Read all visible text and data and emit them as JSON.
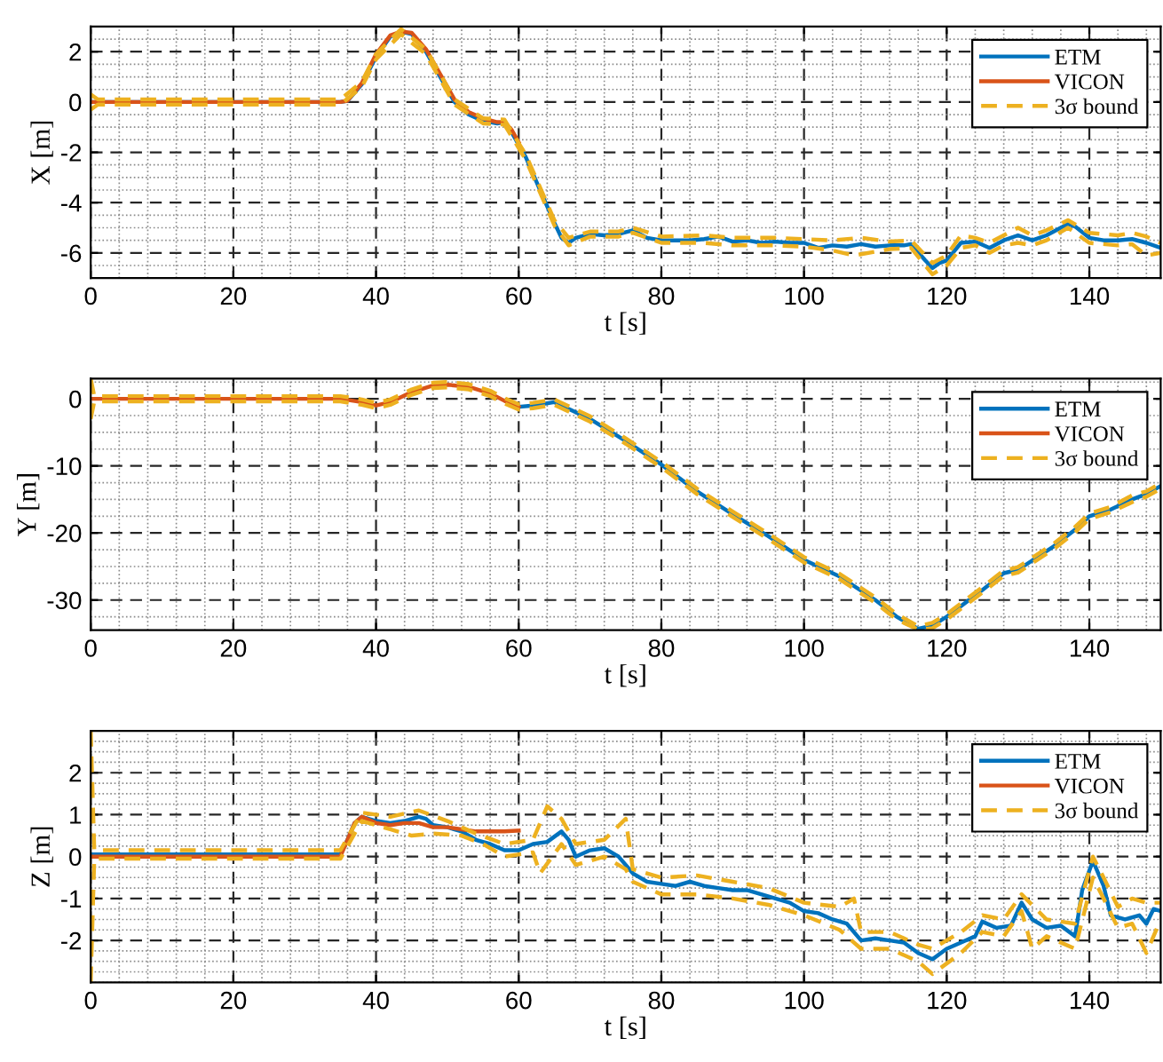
{
  "chart_data": [
    {
      "type": "line",
      "xlabel": "t [s]",
      "ylabel": "X [m]",
      "xlim": [
        0,
        150
      ],
      "ylim": [
        -7,
        3
      ],
      "xticks": [
        0,
        20,
        40,
        60,
        80,
        100,
        120,
        140
      ],
      "yticks": [
        -6,
        -4,
        -2,
        0,
        2
      ],
      "grid": true,
      "legend": "top right",
      "series": [
        {
          "name": "ETM",
          "color": "#0072bd",
          "x": [
            0,
            35,
            36,
            38,
            40,
            42,
            43.5,
            45,
            47,
            49,
            51,
            53,
            55,
            57,
            58,
            59,
            61,
            63,
            65,
            66,
            67,
            68,
            70,
            72,
            74,
            76,
            78,
            80,
            82,
            84,
            86,
            88,
            90,
            92,
            94,
            96,
            98,
            100,
            102,
            104,
            106,
            108,
            110,
            112,
            114,
            115,
            117,
            118,
            119,
            120,
            122,
            124,
            126,
            128,
            130,
            132,
            134,
            136,
            137,
            138,
            140,
            142,
            144,
            146,
            148,
            150
          ],
          "values": [
            0,
            0,
            0.05,
            0.7,
            1.8,
            2.6,
            2.8,
            2.7,
            2.0,
            1.0,
            0.0,
            -0.5,
            -0.75,
            -0.85,
            -0.8,
            -1.2,
            -2.2,
            -3.5,
            -4.8,
            -5.4,
            -5.6,
            -5.4,
            -5.25,
            -5.3,
            -5.25,
            -5.1,
            -5.4,
            -5.5,
            -5.5,
            -5.5,
            -5.45,
            -5.35,
            -5.55,
            -5.5,
            -5.6,
            -5.55,
            -5.6,
            -5.6,
            -5.8,
            -5.7,
            -5.75,
            -5.65,
            -5.75,
            -5.7,
            -5.7,
            -5.65,
            -6.3,
            -6.6,
            -6.4,
            -6.3,
            -5.6,
            -5.55,
            -5.8,
            -5.5,
            -5.3,
            -5.5,
            -5.3,
            -5.0,
            -4.85,
            -4.95,
            -5.4,
            -5.5,
            -5.5,
            -5.45,
            -5.6,
            -5.8
          ]
        },
        {
          "name": "VICON",
          "color": "#d95319",
          "x": [
            0,
            35,
            36,
            38,
            40,
            42,
            43.5,
            45,
            47,
            49,
            51,
            53,
            55,
            57,
            58,
            59,
            60
          ],
          "values": [
            0,
            0,
            0.05,
            0.75,
            1.9,
            2.65,
            2.8,
            2.75,
            2.1,
            1.1,
            0.1,
            -0.4,
            -0.65,
            -0.8,
            -0.8,
            -1.1,
            -1.6
          ]
        },
        {
          "name": "3σ bound",
          "color": "#edb120",
          "line_style": "dashed",
          "x": [
            0,
            1,
            35,
            38,
            40,
            43.5,
            47,
            51,
            55,
            58,
            61,
            65,
            67,
            70,
            74,
            76,
            80,
            86,
            90,
            96,
            100,
            104,
            108,
            112,
            115,
            118,
            120,
            122,
            124,
            126,
            128,
            130,
            132,
            134,
            137,
            140,
            144,
            146,
            148,
            150
          ],
          "values": [
            0.3,
            0.1,
            0.1,
            0.8,
            1.9,
            2.9,
            2.1,
            0.1,
            -0.65,
            -0.7,
            -2.1,
            -4.7,
            -5.4,
            -5.15,
            -5.15,
            -5.0,
            -5.35,
            -5.3,
            -5.4,
            -5.4,
            -5.45,
            -5.5,
            -5.4,
            -5.55,
            -5.5,
            -6.4,
            -6.1,
            -5.3,
            -5.4,
            -5.6,
            -5.3,
            -5.0,
            -5.3,
            -5.1,
            -4.7,
            -5.2,
            -5.3,
            -5.2,
            -5.35,
            -5.6
          ]
        },
        {
          "color": "#edb120",
          "line_style": "dashed",
          "x": [
            0,
            1,
            35,
            38,
            40,
            43.5,
            47,
            51,
            55,
            58,
            61,
            65,
            67,
            70,
            74,
            76,
            80,
            86,
            90,
            96,
            100,
            104,
            107,
            112,
            115,
            118,
            120,
            122,
            124,
            126,
            128,
            130,
            132,
            134,
            137,
            140,
            144,
            146,
            148,
            150
          ],
          "values": [
            -0.3,
            -0.1,
            -0.1,
            0.6,
            1.7,
            2.7,
            1.9,
            -0.1,
            -0.85,
            -0.9,
            -2.3,
            -4.9,
            -5.7,
            -5.35,
            -5.35,
            -5.2,
            -5.6,
            -5.6,
            -5.7,
            -5.7,
            -5.75,
            -5.9,
            -6.1,
            -5.85,
            -5.8,
            -6.85,
            -6.5,
            -5.8,
            -5.7,
            -6.0,
            -5.7,
            -5.6,
            -5.7,
            -5.5,
            -5.0,
            -5.6,
            -5.7,
            -5.65,
            -6.1,
            -6.0
          ]
        }
      ]
    },
    {
      "type": "line",
      "xlabel": "t [s]",
      "ylabel": "Y [m]",
      "xlim": [
        0,
        150
      ],
      "ylim": [
        -34.5,
        3
      ],
      "xticks": [
        0,
        20,
        40,
        60,
        80,
        100,
        120,
        140
      ],
      "yticks": [
        -30,
        -20,
        -10,
        0
      ],
      "grid": true,
      "legend": "top right",
      "series": [
        {
          "name": "ETM",
          "color": "#0072bd",
          "x": [
            60,
            62,
            65,
            68,
            70,
            75,
            80,
            85,
            90,
            95,
            100,
            105,
            110,
            113,
            116,
            118,
            120,
            125,
            128,
            130,
            135,
            138,
            140,
            143,
            146,
            148,
            150
          ],
          "values": [
            -1.2,
            -1,
            -0.5,
            -2,
            -3,
            -6.3,
            -9.8,
            -13.8,
            -17.2,
            -20.5,
            -24,
            -26.5,
            -30,
            -32.5,
            -34.3,
            -33.8,
            -32.5,
            -28.5,
            -26,
            -25.5,
            -22,
            -19.5,
            -17.5,
            -16.5,
            -15,
            -14.2,
            -13
          ]
        },
        {
          "name": "VICON",
          "color": "#d95319",
          "x": [
            0,
            35,
            38,
            40,
            42,
            45,
            48,
            50,
            53,
            56,
            58,
            60
          ],
          "values": [
            0,
            0,
            -0.5,
            -1,
            -0.5,
            1,
            2,
            2.1,
            1.8,
            0.8,
            -0.3,
            -1.2
          ]
        },
        {
          "name": "3σ bound",
          "color": "#edb120",
          "line_style": "dashed",
          "x": [
            0,
            0.5,
            35,
            38,
            40,
            42,
            45,
            48,
            50,
            53,
            56,
            58,
            60,
            62,
            65,
            68,
            70,
            75,
            80,
            85,
            90,
            95,
            100,
            105,
            110,
            113,
            116,
            118,
            120,
            125,
            128,
            130,
            135,
            138,
            140,
            143,
            146,
            148,
            150
          ],
          "values": [
            3,
            0.4,
            0.4,
            -0.1,
            -0.6,
            -0.1,
            1.4,
            2.4,
            2.5,
            2.2,
            1.2,
            0.1,
            -0.8,
            -0.6,
            -0.1,
            -1.6,
            -2.6,
            -5.9,
            -9.4,
            -13.4,
            -16.8,
            -20.1,
            -23.6,
            -26.1,
            -29.6,
            -32.1,
            -33.9,
            -33.4,
            -32.1,
            -28.1,
            -25.6,
            -25.1,
            -21.6,
            -19.1,
            -17.1,
            -16.1,
            -14.4,
            -13.8,
            -12.6
          ]
        },
        {
          "color": "#edb120",
          "line_style": "dashed",
          "x": [
            0,
            0.5,
            35,
            38,
            40,
            42,
            45,
            48,
            50,
            53,
            56,
            58,
            60,
            62,
            65,
            68,
            70,
            75,
            80,
            85,
            90,
            95,
            100,
            105,
            110,
            113,
            116,
            118,
            120,
            125,
            128,
            130,
            135,
            138,
            140,
            143,
            146,
            148,
            150
          ],
          "values": [
            -3,
            -0.4,
            -0.4,
            -0.9,
            -1.4,
            -0.9,
            0.6,
            1.6,
            1.7,
            1.4,
            0.4,
            -0.7,
            -1.6,
            -1.4,
            -0.9,
            -2.4,
            -3.4,
            -6.7,
            -10.2,
            -14.2,
            -17.6,
            -20.9,
            -24.4,
            -26.9,
            -30.4,
            -32.9,
            -34.4,
            -34.2,
            -32.9,
            -28.9,
            -26.4,
            -25.9,
            -22.4,
            -19.9,
            -17.9,
            -16.9,
            -15.4,
            -14.6,
            -13.4
          ]
        }
      ]
    },
    {
      "type": "line",
      "xlabel": "t [s]",
      "ylabel": "Z [m]",
      "xlim": [
        0,
        150
      ],
      "ylim": [
        -3,
        3
      ],
      "xticks": [
        0,
        20,
        40,
        60,
        80,
        100,
        120,
        140
      ],
      "yticks": [
        -2,
        -1,
        0,
        1,
        2
      ],
      "grid": true,
      "legend": "top right",
      "series": [
        {
          "name": "ETM",
          "color": "#0072bd",
          "x": [
            0,
            35,
            36,
            37,
            38,
            40,
            42,
            44,
            46,
            47,
            48,
            50,
            52,
            54,
            56,
            58,
            60,
            62,
            64,
            66,
            67,
            68,
            70,
            72,
            74,
            76,
            78,
            80,
            82,
            84,
            86,
            88,
            90,
            92,
            94,
            96,
            98,
            100,
            102,
            104,
            106,
            108,
            110,
            112,
            114,
            116,
            118,
            120,
            122,
            124,
            125,
            127,
            129,
            130.5,
            132,
            134,
            136,
            138,
            139,
            140.5,
            142,
            143,
            145,
            147,
            148,
            149,
            150
          ],
          "values": [
            0.05,
            0.05,
            0.4,
            0.8,
            0.95,
            0.85,
            0.8,
            0.85,
            0.95,
            0.9,
            0.75,
            0.7,
            0.6,
            0.4,
            0.3,
            0.15,
            0.15,
            0.3,
            0.35,
            0.6,
            0.4,
            0.0,
            0.15,
            0.2,
            0.0,
            -0.4,
            -0.6,
            -0.65,
            -0.7,
            -0.6,
            -0.7,
            -0.75,
            -0.8,
            -0.8,
            -0.9,
            -1.0,
            -1.1,
            -1.3,
            -1.35,
            -1.5,
            -1.6,
            -2.0,
            -1.95,
            -2.0,
            -2.05,
            -2.3,
            -2.45,
            -2.2,
            -2.05,
            -1.9,
            -1.55,
            -1.7,
            -1.65,
            -1.1,
            -1.5,
            -1.7,
            -1.65,
            -1.9,
            -0.8,
            -0.1,
            -0.7,
            -1.4,
            -1.5,
            -1.4,
            -1.6,
            -1.25,
            -1.3
          ]
        },
        {
          "name": "VICON",
          "color": "#d95319",
          "x": [
            0,
            35,
            37,
            38,
            40,
            42,
            44,
            46,
            48,
            50,
            52,
            54,
            56,
            58,
            60
          ],
          "values": [
            0,
            0,
            0.8,
            0.95,
            0.8,
            0.75,
            0.8,
            0.8,
            0.7,
            0.7,
            0.65,
            0.6,
            0.6,
            0.6,
            0.62
          ]
        },
        {
          "name": "3σ bound",
          "color": "#edb120",
          "line_style": "dashed",
          "x": [
            0,
            0.5,
            35,
            38,
            42,
            46,
            50,
            54,
            58,
            62,
            64,
            66,
            68,
            72,
            75,
            76,
            80,
            85,
            90,
            95,
            100,
            105,
            107,
            108,
            112,
            116,
            118,
            122,
            125,
            128,
            130.5,
            134,
            138,
            140.5,
            142,
            144,
            146,
            148,
            150
          ],
          "values": [
            3,
            0.15,
            0.15,
            1.05,
            0.95,
            1.1,
            0.85,
            0.55,
            0.3,
            0.4,
            1.2,
            0.9,
            0.3,
            0.4,
            0.9,
            -0.3,
            -0.5,
            -0.45,
            -0.6,
            -0.75,
            -1.1,
            -1.2,
            -1.0,
            -1.8,
            -1.8,
            -2.1,
            -2.2,
            -1.8,
            -1.4,
            -1.5,
            -0.9,
            -1.5,
            -1.6,
            0.0,
            -0.5,
            -1.2,
            -1.0,
            -1.1,
            -1.1
          ]
        },
        {
          "color": "#edb120",
          "line_style": "dashed",
          "x": [
            0,
            0.5,
            35,
            38,
            42,
            45,
            48,
            52,
            55,
            58,
            62,
            63,
            66,
            68,
            72,
            75,
            76,
            80,
            85,
            90,
            95,
            100,
            105,
            108,
            112,
            116,
            118,
            122,
            125,
            128,
            130.5,
            132,
            134,
            138,
            140.5,
            142,
            144,
            146,
            148,
            150
          ],
          "values": [
            -3,
            -0.05,
            -0.05,
            0.85,
            0.65,
            0.5,
            0.55,
            0.5,
            0.3,
            0.0,
            0.1,
            -0.4,
            0.3,
            -0.2,
            0.0,
            -0.3,
            -0.6,
            -0.9,
            -0.9,
            -1.0,
            -1.15,
            -1.4,
            -1.75,
            -2.2,
            -2.2,
            -2.5,
            -2.8,
            -2.3,
            -1.8,
            -1.9,
            -1.3,
            -2.2,
            -1.9,
            -2.2,
            -0.5,
            -1.0,
            -1.7,
            -1.6,
            -2.3,
            -1.5
          ]
        }
      ]
    }
  ]
}
